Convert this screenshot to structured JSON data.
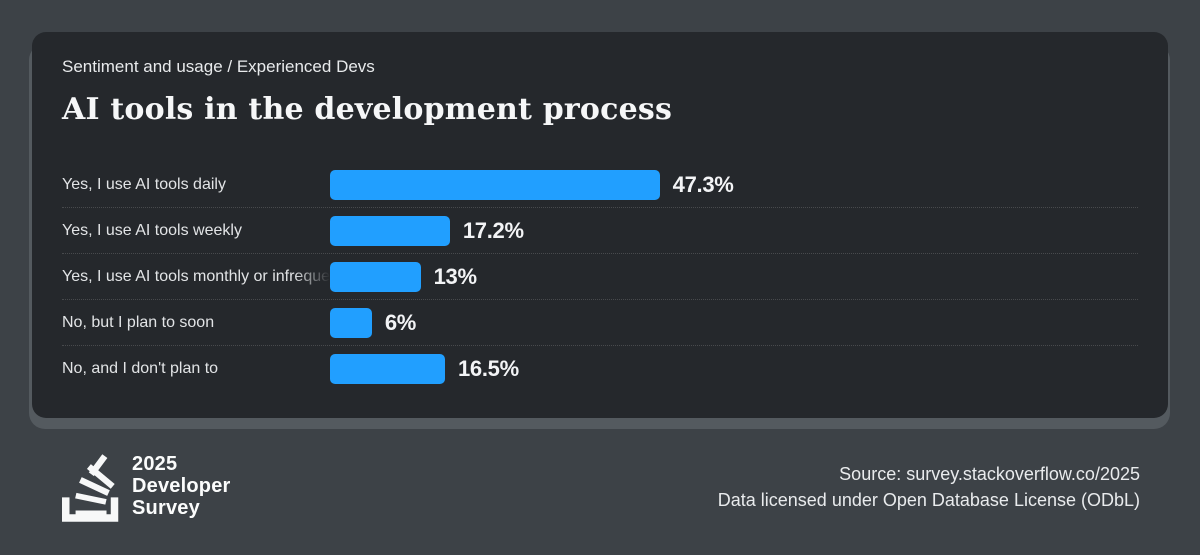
{
  "page": {
    "background": "#3d4247",
    "card_background": "#25282c",
    "card_shadow_color": "#545a5f"
  },
  "header": {
    "eyebrow": "Sentiment and usage / Experienced Devs",
    "title": "AI tools in the development process"
  },
  "chart_data": {
    "type": "bar",
    "orientation": "horizontal",
    "title": "AI tools in the development process",
    "subtitle": "Sentiment and usage / Experienced Devs",
    "categories": [
      "Yes, I use AI tools daily",
      "Yes, I use AI tools weekly",
      "Yes, I use AI tools monthly or infrequently",
      "No, but I plan to soon",
      "No, and I don't plan to"
    ],
    "values": [
      47.3,
      17.2,
      13,
      6,
      16.5
    ],
    "display_values": [
      "47.3%",
      "17.2%",
      "13%",
      "6%",
      "16.5%"
    ],
    "unit": "%",
    "xlim": [
      0,
      100
    ],
    "bar_color": "#219fff",
    "grid": "dotted row separators",
    "legend": "none"
  },
  "footer": {
    "logo": {
      "icon": "stackoverflow-logo-icon",
      "line1": "2025",
      "line2": "Developer",
      "line3": "Survey"
    },
    "source_line": "Source: survey.stackoverflow.co/2025",
    "license_line": "Data licensed under Open Database License (ODbL)"
  }
}
